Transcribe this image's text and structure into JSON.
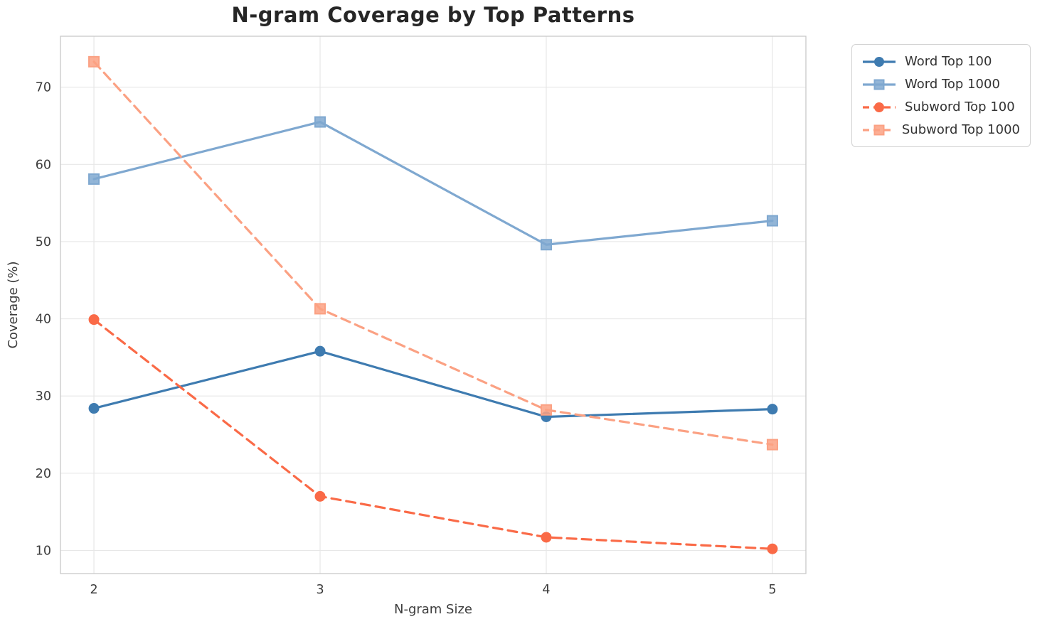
{
  "title": "N-gram Coverage by Top Patterns",
  "chart_data": {
    "type": "line",
    "title": "N-gram Coverage by Top Patterns",
    "xlabel": "N-gram Size",
    "ylabel": "Coverage (%)",
    "x": [
      2,
      3,
      4,
      5
    ],
    "xticks": [
      "2",
      "3",
      "4",
      "5"
    ],
    "yticks": [
      10,
      20,
      30,
      40,
      50,
      60,
      70
    ],
    "xlim": [
      1.852,
      5.148
    ],
    "ylim": [
      7.0,
      76.6
    ],
    "grid": true,
    "legend_position": "outside-upper-right",
    "series": [
      {
        "name": "Word Top 100",
        "values": [
          28.4,
          35.8,
          27.3,
          28.3
        ],
        "color": "#3e7bb0",
        "marker": "circle",
        "line_style": "solid"
      },
      {
        "name": "Word Top 1000",
        "values": [
          58.1,
          65.5,
          49.6,
          52.7
        ],
        "color": "#7fa8d0",
        "marker": "square",
        "line_style": "solid"
      },
      {
        "name": "Subword Top 100",
        "values": [
          39.9,
          17.0,
          11.7,
          10.2
        ],
        "color": "#fa6a47",
        "marker": "circle",
        "line_style": "dashed"
      },
      {
        "name": "Subword Top 1000",
        "values": [
          73.3,
          41.3,
          28.2,
          23.7
        ],
        "color": "#fba183",
        "marker": "square",
        "line_style": "dashed"
      }
    ],
    "colors": {
      "grid": "#e7e7e7",
      "spine": "#cccccc",
      "tick_label": "#3d3d3d",
      "axis_label": "#3d3d3d",
      "title": "#262626",
      "background": "#ffffff"
    }
  }
}
